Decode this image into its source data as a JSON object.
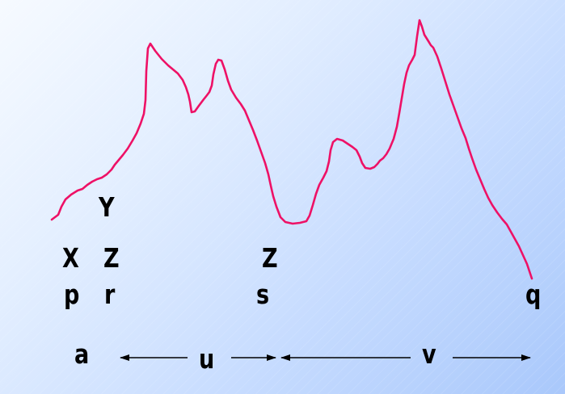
{
  "colors": {
    "curve": "#ee1166",
    "arrow": "#000000",
    "text": "#000000"
  },
  "labels": {
    "Y": "Y",
    "X": "X",
    "Z1": "Z",
    "Z2": "Z",
    "p": "p",
    "r": "r",
    "s": "s",
    "q": "q",
    "a": "a",
    "u": "u",
    "v": "v"
  }
}
